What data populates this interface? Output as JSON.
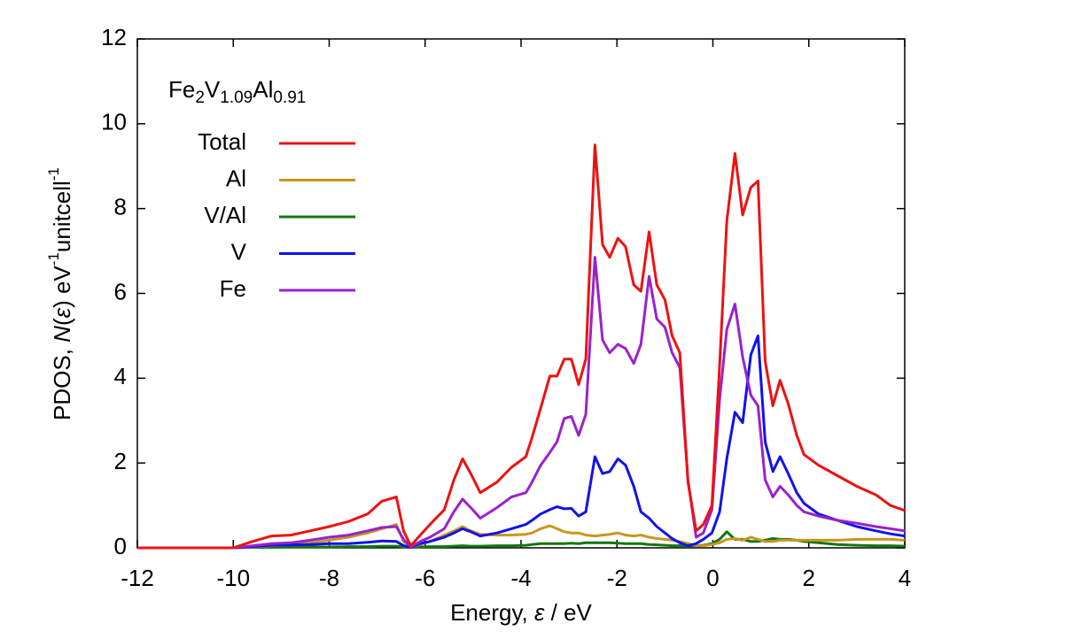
{
  "chart_data": {
    "type": "line",
    "annotation": [
      {
        "text": "Fe"
      },
      {
        "text": "2",
        "style": "sub"
      },
      {
        "text": "V"
      },
      {
        "text": "1.09",
        "style": "sub"
      },
      {
        "text": "Al"
      },
      {
        "text": "0.91",
        "style": "sub"
      }
    ],
    "x_label": [
      {
        "text": "Energy, "
      },
      {
        "text": "ε",
        "style": "italic"
      },
      {
        "text": " / eV"
      }
    ],
    "y_label": [
      {
        "text": "PDOS, "
      },
      {
        "text": "N",
        "style": "italic"
      },
      {
        "text": "("
      },
      {
        "text": "ε",
        "style": "italic"
      },
      {
        "text": ") eV"
      },
      {
        "text": "-1",
        "style": "sup"
      },
      {
        "text": "unitcell"
      },
      {
        "text": "-1",
        "style": "sup"
      }
    ],
    "xlim": [
      -12,
      4
    ],
    "ylim": [
      0,
      12
    ],
    "xticks": [
      -12,
      -10,
      -8,
      -6,
      -4,
      -2,
      0,
      2,
      4
    ],
    "yticks": [
      0,
      2,
      4,
      6,
      8,
      10,
      12
    ],
    "legend": "upper left",
    "x": [
      -12,
      -10,
      -9.6,
      -9.2,
      -8.8,
      -8.4,
      -8.0,
      -7.6,
      -7.2,
      -6.9,
      -6.6,
      -6.45,
      -6.3,
      -6.1,
      -5.9,
      -5.6,
      -5.4,
      -5.22,
      -5.05,
      -4.85,
      -4.5,
      -4.2,
      -3.9,
      -3.77,
      -3.59,
      -3.4,
      -3.25,
      -3.1,
      -2.95,
      -2.8,
      -2.65,
      -2.46,
      -2.3,
      -2.15,
      -1.98,
      -1.82,
      -1.65,
      -1.5,
      -1.33,
      -1.17,
      -1.0,
      -0.85,
      -0.69,
      -0.52,
      -0.35,
      -0.2,
      -0.02,
      0.14,
      0.29,
      0.46,
      0.62,
      0.79,
      0.94,
      1.09,
      1.25,
      1.4,
      1.57,
      1.75,
      1.9,
      2.2,
      2.6,
      3.0,
      3.4,
      3.7,
      4.0
    ],
    "series": [
      {
        "name": "Total",
        "color": "#ee1111",
        "values": [
          0,
          0,
          0.15,
          0.28,
          0.3,
          0.4,
          0.5,
          0.62,
          0.8,
          1.1,
          1.2,
          0.4,
          0.05,
          0.3,
          0.55,
          0.9,
          1.6,
          2.1,
          1.75,
          1.3,
          1.55,
          1.9,
          2.15,
          2.6,
          3.3,
          4.05,
          4.05,
          4.45,
          4.45,
          3.85,
          4.45,
          9.5,
          7.15,
          6.85,
          7.3,
          7.1,
          6.2,
          6.05,
          7.45,
          6.2,
          5.85,
          5.0,
          4.6,
          1.55,
          0.4,
          0.55,
          1.0,
          4.3,
          7.7,
          9.3,
          7.85,
          8.5,
          8.65,
          4.4,
          3.35,
          3.95,
          3.4,
          2.65,
          2.2,
          1.95,
          1.7,
          1.45,
          1.25,
          1.0,
          0.88
        ]
      },
      {
        "name": "Al",
        "color": "#c8961e",
        "values": [
          0,
          0,
          0.02,
          0.05,
          0.08,
          0.12,
          0.18,
          0.25,
          0.35,
          0.45,
          0.55,
          0.15,
          0.01,
          0.08,
          0.15,
          0.3,
          0.4,
          0.5,
          0.4,
          0.32,
          0.3,
          0.3,
          0.32,
          0.35,
          0.45,
          0.52,
          0.45,
          0.38,
          0.35,
          0.35,
          0.3,
          0.28,
          0.3,
          0.32,
          0.35,
          0.3,
          0.28,
          0.3,
          0.25,
          0.22,
          0.2,
          0.18,
          0.15,
          0.1,
          0.05,
          0.05,
          0.08,
          0.12,
          0.2,
          0.22,
          0.18,
          0.25,
          0.2,
          0.15,
          0.15,
          0.18,
          0.18,
          0.18,
          0.18,
          0.18,
          0.18,
          0.2,
          0.2,
          0.2,
          0.18
        ]
      },
      {
        "name": "V/Al",
        "color": "#117711",
        "values": [
          0,
          0,
          0.01,
          0.01,
          0.02,
          0.02,
          0.02,
          0.03,
          0.03,
          0.04,
          0.04,
          0.02,
          0.01,
          0.02,
          0.03,
          0.03,
          0.04,
          0.05,
          0.04,
          0.04,
          0.05,
          0.05,
          0.06,
          0.08,
          0.1,
          0.1,
          0.1,
          0.1,
          0.11,
          0.1,
          0.12,
          0.12,
          0.12,
          0.12,
          0.11,
          0.1,
          0.1,
          0.1,
          0.08,
          0.07,
          0.06,
          0.05,
          0.05,
          0.05,
          0.05,
          0.06,
          0.1,
          0.2,
          0.38,
          0.2,
          0.2,
          0.15,
          0.15,
          0.18,
          0.22,
          0.2,
          0.2,
          0.18,
          0.15,
          0.12,
          0.08,
          0.06,
          0.05,
          0.05,
          0.04
        ]
      },
      {
        "name": "V",
        "color": "#1111ee",
        "values": [
          0,
          0,
          0.03,
          0.06,
          0.07,
          0.08,
          0.1,
          0.1,
          0.13,
          0.16,
          0.15,
          0.05,
          0.01,
          0.1,
          0.15,
          0.25,
          0.35,
          0.45,
          0.38,
          0.28,
          0.35,
          0.45,
          0.55,
          0.65,
          0.8,
          0.9,
          0.97,
          0.92,
          0.93,
          0.75,
          0.85,
          2.15,
          1.75,
          1.8,
          2.1,
          1.95,
          1.45,
          0.85,
          0.7,
          0.5,
          0.35,
          0.22,
          0.12,
          0.05,
          0.1,
          0.2,
          0.35,
          0.85,
          2.1,
          3.2,
          2.95,
          4.55,
          5.0,
          2.5,
          1.8,
          2.15,
          1.75,
          1.3,
          1.05,
          0.8,
          0.65,
          0.5,
          0.4,
          0.33,
          0.28
        ]
      },
      {
        "name": "Fe",
        "color": "#9922cc",
        "values": [
          0,
          0,
          0.05,
          0.1,
          0.12,
          0.18,
          0.25,
          0.3,
          0.4,
          0.48,
          0.5,
          0.2,
          0.02,
          0.15,
          0.25,
          0.45,
          0.85,
          1.15,
          0.95,
          0.7,
          0.95,
          1.2,
          1.3,
          1.55,
          1.95,
          2.25,
          2.5,
          3.05,
          3.1,
          2.65,
          3.15,
          6.85,
          4.9,
          4.6,
          4.8,
          4.7,
          4.35,
          4.8,
          6.4,
          5.4,
          5.2,
          4.6,
          4.25,
          1.6,
          0.25,
          0.35,
          0.9,
          3.5,
          5.15,
          5.75,
          4.5,
          3.6,
          3.35,
          1.6,
          1.2,
          1.45,
          1.25,
          1.0,
          0.85,
          0.75,
          0.65,
          0.58,
          0.5,
          0.45,
          0.4
        ]
      }
    ]
  }
}
